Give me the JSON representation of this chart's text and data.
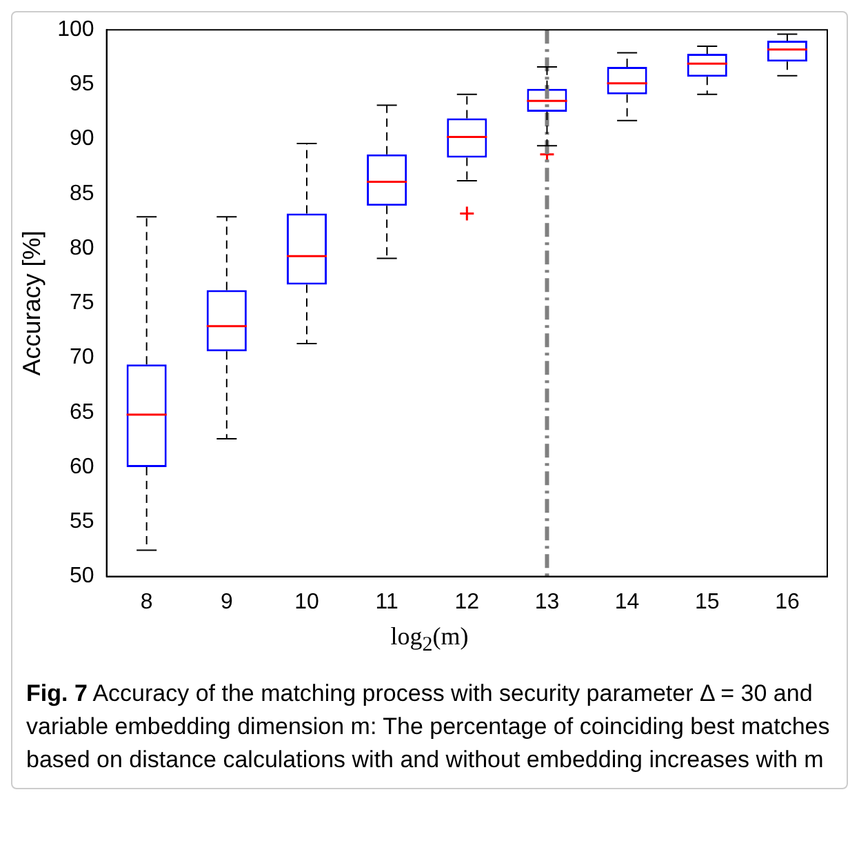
{
  "chart_data": {
    "type": "box",
    "xlabel": "log$_{2}$(m)",
    "ylabel": "Accuracy [%]",
    "categories": [
      "8",
      "9",
      "10",
      "11",
      "12",
      "13",
      "14",
      "15",
      "16"
    ],
    "series": [
      {
        "color": "#0000ff",
        "boxes": [
          {
            "low": 52.4,
            "q1": 60.0,
            "median": 64.8,
            "q3": 69.4,
            "high": 82.9
          },
          {
            "low": 62.6,
            "q1": 70.6,
            "median": 72.9,
            "q3": 76.2,
            "high": 82.9
          },
          {
            "low": 71.3,
            "q1": 76.7,
            "median": 79.3,
            "q3": 83.2,
            "high": 89.6
          },
          {
            "low": 79.1,
            "q1": 83.9,
            "median": 86.1,
            "q3": 88.6,
            "high": 93.1
          },
          {
            "low": 86.2,
            "q1": 88.3,
            "median": 90.2,
            "q3": 91.9,
            "high": 94.1,
            "outliers": [
              83.2
            ]
          },
          {
            "low": 89.4,
            "q1": 92.5,
            "median": 93.5,
            "q3": 94.6,
            "high": 96.6,
            "outliers": [
              88.6
            ]
          },
          {
            "low": 91.7,
            "q1": 94.1,
            "median": 95.1,
            "q3": 96.6,
            "high": 97.9
          },
          {
            "low": 94.1,
            "q1": 95.7,
            "median": 96.9,
            "q3": 97.8,
            "high": 98.5
          },
          {
            "low": 95.8,
            "q1": 97.1,
            "median": 98.2,
            "q3": 99.0,
            "high": 99.6
          }
        ]
      }
    ],
    "ylim": [
      50,
      100
    ],
    "yticks": [
      50,
      55,
      60,
      65,
      70,
      75,
      80,
      85,
      90,
      95,
      100
    ],
    "grid": false,
    "legend": false,
    "ref_lines": [
      {
        "axis": "x",
        "value": "13",
        "color": "#808080",
        "line_style": "dashed"
      }
    ],
    "annotations": [
      "Fig. 7",
      "Accuracy of the matching process with security parameter Δ = 30 and variable embedding dimension m: The percentage of coinciding best matches based on distance calculations with and without embedding increases with m"
    ]
  }
}
